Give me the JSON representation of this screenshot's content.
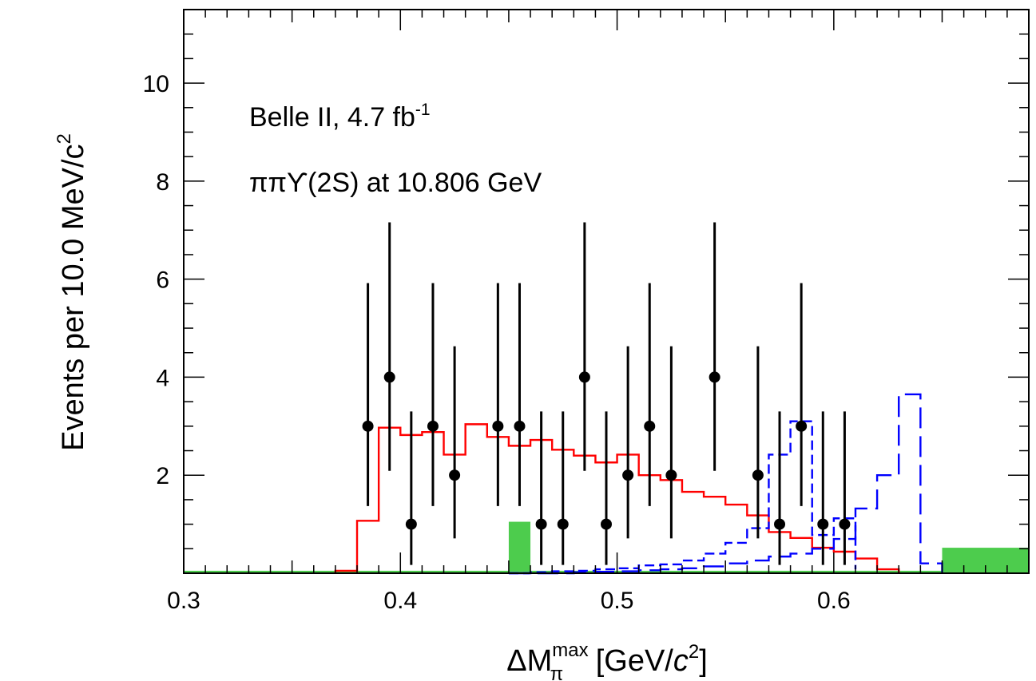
{
  "chart_data": {
    "type": "histogram",
    "xlabel": {
      "pre": "ΔM",
      "sup": "max",
      "sub": "π",
      "mid": " [GeV/",
      "ital": "c",
      "sup2": "2",
      "post": "]"
    },
    "ylabel": {
      "main": "Events per 10.0 MeV/c",
      "sup": "2"
    },
    "xlim": [
      0.3,
      0.69
    ],
    "ylim": [
      0,
      11.5
    ],
    "x_ticks": [
      {
        "v": 0.3,
        "label": "0.3"
      },
      {
        "v": 0.4,
        "label": "0.4"
      },
      {
        "v": 0.5,
        "label": "0.5"
      },
      {
        "v": 0.6,
        "label": "0.6"
      }
    ],
    "y_ticks": [
      {
        "v": 2,
        "label": "2"
      },
      {
        "v": 4,
        "label": "4"
      },
      {
        "v": 6,
        "label": "6"
      },
      {
        "v": 8,
        "label": "8"
      },
      {
        "v": 10,
        "label": "10"
      }
    ],
    "annotations": [
      {
        "text": "Belle II, 4.7 fb",
        "sup": "-1"
      },
      {
        "text": "ππϒ(2S) at 10.806 GeV"
      }
    ],
    "data_points": {
      "color": "#000000",
      "x": [
        0.385,
        0.395,
        0.405,
        0.415,
        0.425,
        0.445,
        0.455,
        0.465,
        0.475,
        0.485,
        0.495,
        0.505,
        0.515,
        0.525,
        0.545,
        0.565,
        0.575,
        0.585,
        0.595,
        0.605
      ],
      "y": [
        3,
        4,
        1,
        3,
        2,
        3,
        3,
        1,
        1,
        4,
        1,
        2,
        3,
        2,
        4,
        2,
        1,
        3,
        1,
        1
      ],
      "err_low": [
        1.63,
        1.91,
        0.83,
        1.63,
        1.29,
        1.63,
        1.63,
        0.83,
        0.83,
        1.91,
        0.83,
        1.29,
        1.63,
        1.29,
        1.91,
        1.29,
        0.83,
        1.63,
        0.83,
        0.83
      ],
      "err_high": [
        2.92,
        3.16,
        2.3,
        2.92,
        2.63,
        2.92,
        2.92,
        2.3,
        2.3,
        3.16,
        2.3,
        2.63,
        2.92,
        2.63,
        3.16,
        2.63,
        2.3,
        2.92,
        2.3,
        2.3
      ]
    },
    "histograms": [
      {
        "style": "solid",
        "color": "#ff0000",
        "edges": [
          0.37,
          0.38,
          0.39,
          0.4,
          0.41,
          0.42,
          0.43,
          0.44,
          0.45,
          0.46,
          0.47,
          0.48,
          0.49,
          0.5,
          0.51,
          0.52,
          0.53,
          0.54,
          0.55,
          0.56,
          0.57,
          0.58,
          0.59,
          0.6,
          0.61,
          0.62,
          0.63
        ],
        "values": [
          0.05,
          1.07,
          2.97,
          2.82,
          2.88,
          2.42,
          3.04,
          2.78,
          2.6,
          2.72,
          2.52,
          2.4,
          2.26,
          2.42,
          2.0,
          1.9,
          1.66,
          1.56,
          1.4,
          1.18,
          0.84,
          0.72,
          0.52,
          0.44,
          0.3,
          0.08
        ]
      },
      {
        "style": "short-dash",
        "color": "#0000ff",
        "edges": [
          0.45,
          0.46,
          0.47,
          0.48,
          0.49,
          0.5,
          0.51,
          0.52,
          0.53,
          0.54,
          0.55,
          0.56,
          0.57,
          0.58,
          0.59,
          0.6,
          0.61
        ],
        "values": [
          0.0,
          0.02,
          0.04,
          0.05,
          0.08,
          0.1,
          0.16,
          0.18,
          0.26,
          0.4,
          0.62,
          0.92,
          2.42,
          3.1,
          0.78,
          1.12,
          0.08
        ]
      },
      {
        "style": "long-dash",
        "color": "#0000ff",
        "edges": [
          0.45,
          0.46,
          0.47,
          0.48,
          0.49,
          0.5,
          0.51,
          0.52,
          0.53,
          0.54,
          0.55,
          0.56,
          0.57,
          0.58,
          0.59,
          0.6,
          0.61,
          0.62,
          0.63,
          0.64,
          0.65
        ],
        "values": [
          0.0,
          0.0,
          0.0,
          0.02,
          0.03,
          0.04,
          0.06,
          0.08,
          0.1,
          0.14,
          0.2,
          0.26,
          0.34,
          0.4,
          0.5,
          0.7,
          1.32,
          2.0,
          3.65,
          0.2,
          0.0
        ]
      }
    ],
    "fills": {
      "color": "#4dcc4d",
      "bars": [
        {
          "x0": 0.45,
          "x1": 0.46,
          "value": 1.05
        },
        {
          "x0": 0.65,
          "x1": 0.69,
          "value": 0.52
        }
      ],
      "baseline": 0.05
    }
  }
}
